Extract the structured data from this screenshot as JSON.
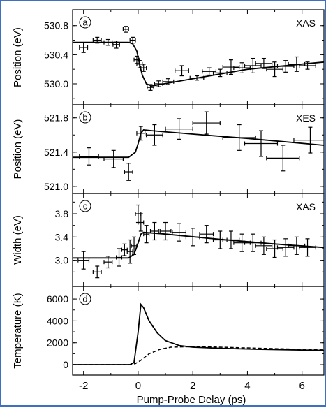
{
  "frame_color": "#3f6fc0",
  "x_axis": {
    "label": "Pump-Probe Delay (ps)",
    "range": [
      -2.4,
      6.8
    ],
    "ticks": [
      -2,
      0,
      2,
      4,
      6
    ],
    "tick_labels": [
      "-2",
      "0",
      "2",
      "4",
      "6"
    ]
  },
  "chart_data": [
    {
      "type": "scatter",
      "panel_letter": "a",
      "tag": "XAS",
      "ylabel": "Position (eV)",
      "ylim": [
        529.75,
        530.98
      ],
      "yticks": [
        530.0,
        530.4,
        530.8
      ],
      "ytick_labels": [
        "530.0",
        "530.4",
        "530.8"
      ],
      "points": [
        {
          "x": -2.0,
          "y": 530.5,
          "xerr": 0.15,
          "yerr": 0.07
        },
        {
          "x": -1.5,
          "y": 530.6,
          "xerr": 0.15,
          "yerr": 0.04
        },
        {
          "x": -1.1,
          "y": 530.57,
          "xerr": 0.15,
          "yerr": 0.04
        },
        {
          "x": -0.8,
          "y": 530.54,
          "xerr": 0.12,
          "yerr": 0.05
        },
        {
          "x": -0.45,
          "y": 530.75,
          "xerr": 0.1,
          "yerr": 0.04
        },
        {
          "x": -0.2,
          "y": 530.6,
          "xerr": 0.1,
          "yerr": 0.04
        },
        {
          "x": -0.05,
          "y": 530.33,
          "xerr": 0.1,
          "yerr": 0.05
        },
        {
          "x": 0.05,
          "y": 530.27,
          "xerr": 0.1,
          "yerr": 0.05
        },
        {
          "x": 0.2,
          "y": 530.22,
          "xerr": 0.1,
          "yerr": 0.05
        },
        {
          "x": 0.45,
          "y": 529.95,
          "xerr": 0.12,
          "yerr": 0.04
        },
        {
          "x": 0.75,
          "y": 530.0,
          "xerr": 0.15,
          "yerr": 0.04
        },
        {
          "x": 1.1,
          "y": 530.03,
          "xerr": 0.2,
          "yerr": 0.04
        },
        {
          "x": 1.6,
          "y": 530.18,
          "xerr": 0.25,
          "yerr": 0.07
        },
        {
          "x": 2.15,
          "y": 530.08,
          "xerr": 0.25,
          "yerr": 0.03
        },
        {
          "x": 2.6,
          "y": 530.17,
          "xerr": 0.25,
          "yerr": 0.05
        },
        {
          "x": 3.0,
          "y": 530.15,
          "xerr": 0.25,
          "yerr": 0.05
        },
        {
          "x": 3.4,
          "y": 530.23,
          "xerr": 0.3,
          "yerr": 0.1
        },
        {
          "x": 3.8,
          "y": 530.22,
          "xerr": 0.3,
          "yerr": 0.07
        },
        {
          "x": 4.2,
          "y": 530.25,
          "xerr": 0.3,
          "yerr": 0.1
        },
        {
          "x": 4.6,
          "y": 530.28,
          "xerr": 0.3,
          "yerr": 0.07
        },
        {
          "x": 5.0,
          "y": 530.2,
          "xerr": 0.3,
          "yerr": 0.1
        },
        {
          "x": 5.4,
          "y": 530.24,
          "xerr": 0.3,
          "yerr": 0.08
        },
        {
          "x": 5.8,
          "y": 530.27,
          "xerr": 0.3,
          "yerr": 0.1
        },
        {
          "x": 6.2,
          "y": 530.25,
          "xerr": 0.3,
          "yerr": 0.05
        }
      ],
      "fit": [
        [
          -2.4,
          530.57
        ],
        [
          -0.35,
          530.57
        ],
        [
          -0.2,
          530.55
        ],
        [
          -0.05,
          530.45
        ],
        [
          0.05,
          530.27
        ],
        [
          0.15,
          530.12
        ],
        [
          0.3,
          530.0
        ],
        [
          0.5,
          529.97
        ],
        [
          0.8,
          529.99
        ],
        [
          2.0,
          530.07
        ],
        [
          4.0,
          530.2
        ],
        [
          6.8,
          530.3
        ]
      ]
    },
    {
      "type": "scatter",
      "panel_letter": "b",
      "tag": "XES",
      "ylabel": "Position (eV)",
      "ylim": [
        520.95,
        521.92
      ],
      "yticks": [
        521.0,
        521.4,
        521.8
      ],
      "ytick_labels": [
        "521.0",
        "521.4",
        "521.8"
      ],
      "points": [
        {
          "x": -1.8,
          "y": 521.35,
          "xerr": 0.35,
          "yerr": 0.1
        },
        {
          "x": -0.9,
          "y": 521.32,
          "xerr": 0.35,
          "yerr": 0.1
        },
        {
          "x": -0.35,
          "y": 521.17,
          "xerr": 0.15,
          "yerr": 0.1
        },
        {
          "x": 0.1,
          "y": 521.62,
          "xerr": 0.15,
          "yerr": 0.08
        },
        {
          "x": 0.6,
          "y": 521.6,
          "xerr": 0.3,
          "yerr": 0.12
        },
        {
          "x": 1.5,
          "y": 521.67,
          "xerr": 0.5,
          "yerr": 0.12
        },
        {
          "x": 2.5,
          "y": 521.74,
          "xerr": 0.5,
          "yerr": 0.13
        },
        {
          "x": 3.7,
          "y": 521.57,
          "xerr": 0.6,
          "yerr": 0.15
        },
        {
          "x": 4.5,
          "y": 521.5,
          "xerr": 0.6,
          "yerr": 0.15
        },
        {
          "x": 5.3,
          "y": 521.33,
          "xerr": 0.6,
          "yerr": 0.15
        },
        {
          "x": 6.3,
          "y": 521.54,
          "xerr": 0.6,
          "yerr": 0.15
        }
      ],
      "fit": [
        [
          -2.4,
          521.34
        ],
        [
          -0.35,
          521.34
        ],
        [
          -0.1,
          521.4
        ],
        [
          0.0,
          521.5
        ],
        [
          0.1,
          521.62
        ],
        [
          0.2,
          521.66
        ],
        [
          0.5,
          521.65
        ],
        [
          2.0,
          521.61
        ],
        [
          4.0,
          521.56
        ],
        [
          6.8,
          521.48
        ]
      ]
    },
    {
      "type": "scatter",
      "panel_letter": "c",
      "tag": "XAS",
      "ylabel": "Width (eV)",
      "ylim": [
        2.6,
        4.1
      ],
      "yticks": [
        3.0,
        3.4,
        3.8
      ],
      "ytick_labels": [
        "3.0",
        "3.4",
        "3.8"
      ],
      "points": [
        {
          "x": -2.0,
          "y": 3.0,
          "xerr": 0.2,
          "yerr": 0.15
        },
        {
          "x": -1.5,
          "y": 2.8,
          "xerr": 0.15,
          "yerr": 0.1
        },
        {
          "x": -1.1,
          "y": 2.97,
          "xerr": 0.15,
          "yerr": 0.1
        },
        {
          "x": -0.7,
          "y": 3.05,
          "xerr": 0.1,
          "yerr": 0.15
        },
        {
          "x": -0.5,
          "y": 3.18,
          "xerr": 0.1,
          "yerr": 0.1
        },
        {
          "x": -0.3,
          "y": 3.15,
          "xerr": 0.1,
          "yerr": 0.2
        },
        {
          "x": -0.15,
          "y": 3.25,
          "xerr": 0.1,
          "yerr": 0.15
        },
        {
          "x": 0.0,
          "y": 3.8,
          "xerr": 0.1,
          "yerr": 0.15
        },
        {
          "x": 0.1,
          "y": 3.65,
          "xerr": 0.1,
          "yerr": 0.15
        },
        {
          "x": 0.3,
          "y": 3.45,
          "xerr": 0.1,
          "yerr": 0.15
        },
        {
          "x": 0.6,
          "y": 3.5,
          "xerr": 0.15,
          "yerr": 0.15
        },
        {
          "x": 1.0,
          "y": 3.5,
          "xerr": 0.2,
          "yerr": 0.15
        },
        {
          "x": 1.5,
          "y": 3.48,
          "xerr": 0.25,
          "yerr": 0.15
        },
        {
          "x": 2.0,
          "y": 3.4,
          "xerr": 0.25,
          "yerr": 0.15
        },
        {
          "x": 2.5,
          "y": 3.45,
          "xerr": 0.25,
          "yerr": 0.15
        },
        {
          "x": 3.0,
          "y": 3.35,
          "xerr": 0.25,
          "yerr": 0.15
        },
        {
          "x": 3.4,
          "y": 3.35,
          "xerr": 0.3,
          "yerr": 0.15
        },
        {
          "x": 3.8,
          "y": 3.3,
          "xerr": 0.3,
          "yerr": 0.15
        },
        {
          "x": 4.2,
          "y": 3.3,
          "xerr": 0.3,
          "yerr": 0.15
        },
        {
          "x": 4.6,
          "y": 3.25,
          "xerr": 0.3,
          "yerr": 0.15
        },
        {
          "x": 5.0,
          "y": 3.2,
          "xerr": 0.3,
          "yerr": 0.15
        },
        {
          "x": 5.4,
          "y": 3.22,
          "xerr": 0.3,
          "yerr": 0.15
        },
        {
          "x": 5.8,
          "y": 3.25,
          "xerr": 0.3,
          "yerr": 0.15
        },
        {
          "x": 6.2,
          "y": 3.22,
          "xerr": 0.3,
          "yerr": 0.15
        }
      ],
      "fit": [
        [
          -2.4,
          3.04
        ],
        [
          -0.35,
          3.04
        ],
        [
          -0.15,
          3.1
        ],
        [
          0.0,
          3.3
        ],
        [
          0.1,
          3.45
        ],
        [
          0.2,
          3.48
        ],
        [
          1.0,
          3.45
        ],
        [
          3.0,
          3.36
        ],
        [
          5.0,
          3.28
        ],
        [
          6.8,
          3.22
        ]
      ]
    },
    {
      "type": "line",
      "panel_letter": "d",
      "ylabel": "Temperature (K)",
      "ylim": [
        -700,
        6900
      ],
      "yticks": [
        0,
        2000,
        4000,
        6000
      ],
      "ytick_labels": [
        "0",
        "2000",
        "4000",
        "6000"
      ],
      "series": [
        {
          "style": "solid",
          "points": [
            [
              -2.4,
              0
            ],
            [
              -0.3,
              0
            ],
            [
              -0.15,
              200
            ],
            [
              0.0,
              3000
            ],
            [
              0.1,
              5500
            ],
            [
              0.2,
              5200
            ],
            [
              0.4,
              4000
            ],
            [
              0.7,
              2900
            ],
            [
              1.0,
              2200
            ],
            [
              1.5,
              1750
            ],
            [
              2.0,
              1600
            ],
            [
              3.0,
              1500
            ],
            [
              4.5,
              1400
            ],
            [
              6.8,
              1300
            ]
          ]
        },
        {
          "style": "dashed",
          "points": [
            [
              -2.4,
              0
            ],
            [
              -0.3,
              0
            ],
            [
              -0.1,
              100
            ],
            [
              0.1,
              400
            ],
            [
              0.4,
              1000
            ],
            [
              0.8,
              1400
            ],
            [
              1.2,
              1600
            ],
            [
              2.0,
              1650
            ],
            [
              3.0,
              1600
            ],
            [
              4.5,
              1500
            ],
            [
              6.8,
              1350
            ]
          ]
        }
      ]
    }
  ]
}
